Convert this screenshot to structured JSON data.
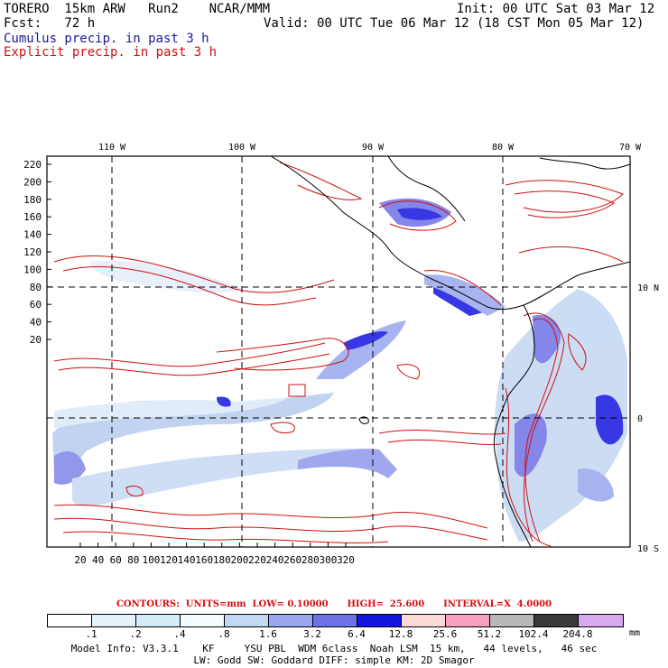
{
  "header": {
    "line1_left": "TORERO  15km ARW   Run2    NCAR/MMM",
    "line1_right": "Init: 00 UTC Sat 03 Mar 12",
    "line2_left": "Fcst:   72 h",
    "line2_right": "Valid: 00 UTC Tue 06 Mar 12 (18 CST Mon 05 Mar 12)",
    "legend_cumulus": "Cumulus precip. in past 3 h",
    "legend_explicit": "Explicit precip. in past 3 h"
  },
  "map": {
    "lon_labels": [
      "110 W",
      "100 W",
      "90 W",
      "80 W",
      "70 W"
    ],
    "lat_labels": [
      "10 N",
      "0",
      "10 S"
    ],
    "y_ticks": [
      "220",
      "200",
      "180",
      "160",
      "140",
      "120",
      "100",
      "80",
      "60",
      "40",
      "20"
    ],
    "x_ticks": [
      "20",
      "40",
      "60",
      "80",
      "100",
      "120",
      "140",
      "160",
      "180",
      "200",
      "220",
      "240",
      "260",
      "280",
      "300",
      "320"
    ]
  },
  "contours": {
    "text": "CONTOURS:  UNITS=mm  LOW= 0.10000      HIGH=  25.600      INTERVAL=X  4.0000"
  },
  "colorbar": {
    "colors": [
      "#ffffff",
      "#e6f2fb",
      "#d4ecf8",
      "#f2fcfc",
      "#c2d7f2",
      "#9aa7ee",
      "#6f72e6",
      "#1515e0",
      "#fbd9d9",
      "#f5a0c0",
      "#b8b8b8",
      "#3a3a3a",
      "#d8a8f0"
    ],
    "labels": [
      ".1",
      ".2",
      ".4",
      ".8",
      "1.6",
      "3.2",
      "6.4",
      "12.8",
      "25.6",
      "51.2",
      "102.4",
      "204.8"
    ],
    "unit": "mm"
  },
  "footer": {
    "line1": "Model Info: V3.3.1    KF     YSU PBL  WDM 6class  Noah LSM  15 km,   44 levels,   46 sec",
    "line2": "LW: Godd SW: Goddard DIFF: simple KM: 2D Smagor"
  }
}
